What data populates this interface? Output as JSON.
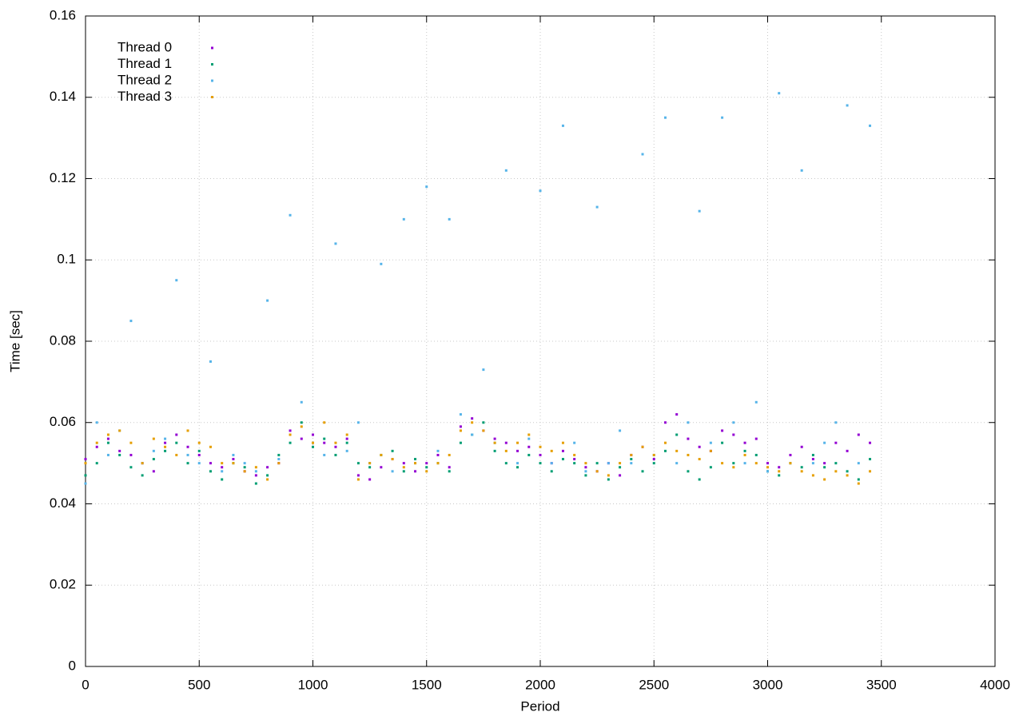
{
  "chart_data": {
    "type": "scatter",
    "x_label": "Period",
    "y_label": "Time [sec]",
    "x": [
      0,
      50,
      100,
      150,
      200,
      250,
      300,
      350,
      400,
      450,
      500,
      550,
      600,
      650,
      700,
      750,
      800,
      850,
      900,
      950,
      1000,
      1050,
      1100,
      1150,
      1200,
      1250,
      1300,
      1350,
      1400,
      1450,
      1500,
      1550,
      1600,
      1650,
      1700,
      1750,
      1800,
      1850,
      1900,
      1950,
      2000,
      2050,
      2100,
      2150,
      2200,
      2250,
      2300,
      2350,
      2400,
      2450,
      2500,
      2550,
      2600,
      2650,
      2700,
      2750,
      2800,
      2850,
      2900,
      2950,
      3000,
      3050,
      3100,
      3150,
      3200,
      3250,
      3300,
      3350,
      3400,
      3450
    ],
    "series": [
      {
        "name": "Thread 0",
        "color": "#9400d3",
        "values": [
          0.051,
          0.054,
          0.056,
          0.053,
          0.052,
          0.05,
          0.048,
          0.055,
          0.057,
          0.054,
          0.052,
          0.05,
          0.049,
          0.051,
          0.048,
          0.047,
          0.049,
          0.05,
          0.058,
          0.056,
          0.057,
          0.055,
          0.054,
          0.056,
          0.047,
          0.046,
          0.049,
          0.051,
          0.05,
          0.048,
          0.05,
          0.052,
          0.049,
          0.059,
          0.061,
          0.058,
          0.056,
          0.055,
          0.053,
          0.054,
          0.052,
          0.05,
          0.053,
          0.051,
          0.049,
          0.048,
          0.05,
          0.047,
          0.052,
          0.054,
          0.051,
          0.06,
          0.062,
          0.056,
          0.054,
          0.053,
          0.058,
          0.057,
          0.055,
          0.056,
          0.05,
          0.049,
          0.052,
          0.054,
          0.051,
          0.05,
          0.055,
          0.053,
          0.057,
          0.055
        ]
      },
      {
        "name": "Thread 1",
        "color": "#009e73",
        "values": [
          0.047,
          0.05,
          0.055,
          0.052,
          0.049,
          0.047,
          0.051,
          0.053,
          0.055,
          0.05,
          0.053,
          0.048,
          0.046,
          0.05,
          0.049,
          0.045,
          0.047,
          0.052,
          0.055,
          0.06,
          0.054,
          0.056,
          0.052,
          0.055,
          0.05,
          0.049,
          0.052,
          0.053,
          0.048,
          0.051,
          0.049,
          0.05,
          0.048,
          0.055,
          0.057,
          0.06,
          0.053,
          0.05,
          0.049,
          0.052,
          0.05,
          0.048,
          0.051,
          0.05,
          0.047,
          0.05,
          0.046,
          0.049,
          0.051,
          0.048,
          0.05,
          0.053,
          0.057,
          0.048,
          0.046,
          0.049,
          0.055,
          0.05,
          0.053,
          0.052,
          0.048,
          0.047,
          0.05,
          0.049,
          0.052,
          0.049,
          0.05,
          0.048,
          0.046,
          0.051
        ]
      },
      {
        "name": "Thread 2",
        "color": "#56b4e9",
        "values": [
          0.045,
          0.06,
          0.052,
          0.058,
          0.085,
          0.05,
          0.053,
          0.056,
          0.095,
          0.052,
          0.05,
          0.075,
          0.048,
          0.052,
          0.05,
          0.048,
          0.09,
          0.051,
          0.111,
          0.065,
          0.055,
          0.052,
          0.104,
          0.053,
          0.06,
          0.05,
          0.099,
          0.048,
          0.11,
          0.05,
          0.118,
          0.053,
          0.11,
          0.062,
          0.057,
          0.073,
          0.055,
          0.122,
          0.05,
          0.056,
          0.117,
          0.05,
          0.133,
          0.055,
          0.048,
          0.113,
          0.05,
          0.058,
          0.05,
          0.126,
          0.052,
          0.135,
          0.05,
          0.06,
          0.112,
          0.055,
          0.135,
          0.06,
          0.05,
          0.065,
          0.048,
          0.141,
          0.05,
          0.122,
          0.05,
          0.055,
          0.06,
          0.138,
          0.05,
          0.133
        ]
      },
      {
        "name": "Thread 3",
        "color": "#e69f00",
        "values": [
          0.05,
          0.055,
          0.057,
          0.058,
          0.055,
          0.05,
          0.056,
          0.054,
          0.052,
          0.058,
          0.055,
          0.054,
          0.05,
          0.05,
          0.048,
          0.049,
          0.046,
          0.05,
          0.057,
          0.059,
          0.055,
          0.06,
          0.055,
          0.057,
          0.046,
          0.05,
          0.052,
          0.051,
          0.049,
          0.05,
          0.048,
          0.05,
          0.052,
          0.058,
          0.06,
          0.058,
          0.055,
          0.053,
          0.055,
          0.057,
          0.054,
          0.053,
          0.055,
          0.052,
          0.05,
          0.048,
          0.047,
          0.05,
          0.052,
          0.054,
          0.052,
          0.055,
          0.053,
          0.052,
          0.051,
          0.053,
          0.05,
          0.049,
          0.052,
          0.05,
          0.049,
          0.048,
          0.05,
          0.048,
          0.047,
          0.046,
          0.048,
          0.047,
          0.045,
          0.048
        ]
      }
    ],
    "xlim": [
      0,
      4000
    ],
    "xticks": [
      0,
      500,
      1000,
      1500,
      2000,
      2500,
      3000,
      3500,
      4000
    ],
    "ylim": [
      0,
      0.16
    ],
    "yticks": [
      0,
      0.02,
      0.04,
      0.06,
      0.08,
      0.1,
      0.12,
      0.14,
      0.16
    ],
    "grid": true,
    "legend": "top-left"
  }
}
